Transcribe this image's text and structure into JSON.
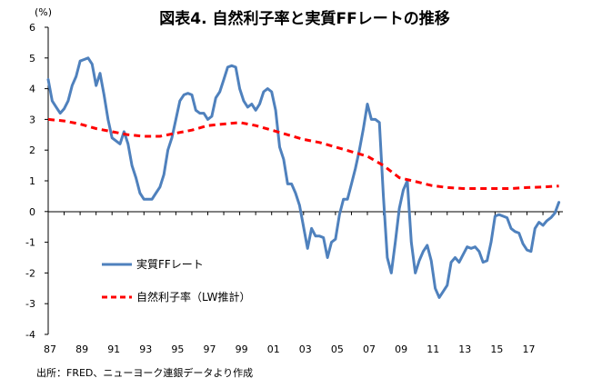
{
  "chart_data": {
    "type": "line",
    "title": "図表4. 自然利子率と実質FFレートの推移",
    "unit_label": "(%)",
    "ylim": [
      -4,
      6
    ],
    "yticks": [
      -4,
      -3,
      -2,
      -1,
      0,
      1,
      2,
      3,
      4,
      5,
      6
    ],
    "xlim": [
      1987,
      2019.25
    ],
    "x_tick_labels": [
      "87",
      "89",
      "91",
      "93",
      "95",
      "97",
      "99",
      "01",
      "03",
      "05",
      "07",
      "09",
      "11",
      "13",
      "15",
      "17"
    ],
    "x_tick_years": [
      1987,
      1989,
      1991,
      1993,
      1995,
      1997,
      1999,
      2001,
      2003,
      2005,
      2007,
      2009,
      2011,
      2013,
      2015,
      2017
    ],
    "source": "出所：FRED、ニューヨーク連銀データより作成",
    "legend_position": "left",
    "series": [
      {
        "name": "実質FFレート",
        "color": "#4F81BD",
        "style": "solid",
        "points": [
          [
            1987.0,
            4.3
          ],
          [
            1987.25,
            3.6
          ],
          [
            1987.5,
            3.4
          ],
          [
            1987.75,
            3.2
          ],
          [
            1988.0,
            3.35
          ],
          [
            1988.25,
            3.6
          ],
          [
            1988.5,
            4.1
          ],
          [
            1988.75,
            4.4
          ],
          [
            1989.0,
            4.9
          ],
          [
            1989.25,
            4.95
          ],
          [
            1989.5,
            5.0
          ],
          [
            1989.75,
            4.8
          ],
          [
            1990.0,
            4.1
          ],
          [
            1990.25,
            4.5
          ],
          [
            1990.5,
            3.8
          ],
          [
            1990.75,
            3.0
          ],
          [
            1991.0,
            2.4
          ],
          [
            1991.25,
            2.3
          ],
          [
            1991.5,
            2.2
          ],
          [
            1991.75,
            2.6
          ],
          [
            1992.0,
            2.2
          ],
          [
            1992.25,
            1.5
          ],
          [
            1992.5,
            1.1
          ],
          [
            1992.75,
            0.6
          ],
          [
            1993.0,
            0.4
          ],
          [
            1993.25,
            0.4
          ],
          [
            1993.5,
            0.4
          ],
          [
            1993.75,
            0.6
          ],
          [
            1994.0,
            0.8
          ],
          [
            1994.25,
            1.2
          ],
          [
            1994.5,
            2.0
          ],
          [
            1994.75,
            2.4
          ],
          [
            1995.0,
            3.0
          ],
          [
            1995.25,
            3.6
          ],
          [
            1995.5,
            3.8
          ],
          [
            1995.75,
            3.85
          ],
          [
            1996.0,
            3.8
          ],
          [
            1996.25,
            3.3
          ],
          [
            1996.5,
            3.2
          ],
          [
            1996.75,
            3.2
          ],
          [
            1997.0,
            3.0
          ],
          [
            1997.25,
            3.1
          ],
          [
            1997.5,
            3.7
          ],
          [
            1997.75,
            3.9
          ],
          [
            1998.0,
            4.3
          ],
          [
            1998.25,
            4.7
          ],
          [
            1998.5,
            4.75
          ],
          [
            1998.75,
            4.7
          ],
          [
            1999.0,
            4.0
          ],
          [
            1999.25,
            3.6
          ],
          [
            1999.5,
            3.4
          ],
          [
            1999.75,
            3.5
          ],
          [
            2000.0,
            3.3
          ],
          [
            2000.25,
            3.5
          ],
          [
            2000.5,
            3.9
          ],
          [
            2000.75,
            4.0
          ],
          [
            2001.0,
            3.9
          ],
          [
            2001.25,
            3.3
          ],
          [
            2001.5,
            2.1
          ],
          [
            2001.75,
            1.7
          ],
          [
            2002.0,
            0.9
          ],
          [
            2002.25,
            0.9
          ],
          [
            2002.5,
            0.6
          ],
          [
            2002.75,
            0.2
          ],
          [
            2003.0,
            -0.5
          ],
          [
            2003.25,
            -1.2
          ],
          [
            2003.5,
            -0.55
          ],
          [
            2003.75,
            -0.8
          ],
          [
            2004.0,
            -0.8
          ],
          [
            2004.25,
            -0.85
          ],
          [
            2004.5,
            -1.5
          ],
          [
            2004.75,
            -1.0
          ],
          [
            2005.0,
            -0.9
          ],
          [
            2005.25,
            -0.1
          ],
          [
            2005.5,
            0.4
          ],
          [
            2005.75,
            0.4
          ],
          [
            2006.0,
            0.9
          ],
          [
            2006.25,
            1.4
          ],
          [
            2006.5,
            2.0
          ],
          [
            2006.75,
            2.7
          ],
          [
            2007.0,
            3.5
          ],
          [
            2007.25,
            3.0
          ],
          [
            2007.5,
            3.0
          ],
          [
            2007.75,
            2.9
          ],
          [
            2008.0,
            0.5
          ],
          [
            2008.25,
            -1.5
          ],
          [
            2008.5,
            -2.0
          ],
          [
            2008.75,
            -1.0
          ],
          [
            2009.0,
            0.1
          ],
          [
            2009.25,
            0.7
          ],
          [
            2009.5,
            1.0
          ],
          [
            2009.75,
            -1.0
          ],
          [
            2010.0,
            -2.0
          ],
          [
            2010.25,
            -1.6
          ],
          [
            2010.5,
            -1.3
          ],
          [
            2010.75,
            -1.1
          ],
          [
            2011.0,
            -1.6
          ],
          [
            2011.25,
            -2.5
          ],
          [
            2011.5,
            -2.8
          ],
          [
            2011.75,
            -2.6
          ],
          [
            2012.0,
            -2.4
          ],
          [
            2012.25,
            -1.65
          ],
          [
            2012.5,
            -1.5
          ],
          [
            2012.75,
            -1.65
          ],
          [
            2013.0,
            -1.4
          ],
          [
            2013.25,
            -1.15
          ],
          [
            2013.5,
            -1.2
          ],
          [
            2013.75,
            -1.15
          ],
          [
            2014.0,
            -1.3
          ],
          [
            2014.25,
            -1.65
          ],
          [
            2014.5,
            -1.6
          ],
          [
            2014.75,
            -1.0
          ],
          [
            2015.0,
            -0.15
          ],
          [
            2015.25,
            -0.1
          ],
          [
            2015.5,
            -0.15
          ],
          [
            2015.75,
            -0.2
          ],
          [
            2016.0,
            -0.55
          ],
          [
            2016.25,
            -0.65
          ],
          [
            2016.5,
            -0.7
          ],
          [
            2016.75,
            -1.05
          ],
          [
            2017.0,
            -1.25
          ],
          [
            2017.25,
            -1.3
          ],
          [
            2017.5,
            -0.55
          ],
          [
            2017.75,
            -0.35
          ],
          [
            2018.0,
            -0.45
          ],
          [
            2018.25,
            -0.3
          ],
          [
            2018.5,
            -0.2
          ],
          [
            2018.75,
            -0.05
          ],
          [
            2019.0,
            0.3
          ]
        ]
      },
      {
        "name": "自然利子率（LW推計）",
        "color": "#FF0000",
        "style": "dashed",
        "points": [
          [
            1987.0,
            3.0
          ],
          [
            1988.0,
            2.95
          ],
          [
            1989.0,
            2.85
          ],
          [
            1990.0,
            2.7
          ],
          [
            1991.0,
            2.6
          ],
          [
            1992.0,
            2.5
          ],
          [
            1993.0,
            2.45
          ],
          [
            1994.0,
            2.45
          ],
          [
            1995.0,
            2.55
          ],
          [
            1996.0,
            2.65
          ],
          [
            1997.0,
            2.8
          ],
          [
            1998.0,
            2.85
          ],
          [
            1999.0,
            2.9
          ],
          [
            2000.0,
            2.8
          ],
          [
            2001.0,
            2.65
          ],
          [
            2002.0,
            2.5
          ],
          [
            2003.0,
            2.35
          ],
          [
            2004.0,
            2.25
          ],
          [
            2005.0,
            2.1
          ],
          [
            2006.0,
            1.95
          ],
          [
            2007.0,
            1.8
          ],
          [
            2008.0,
            1.5
          ],
          [
            2009.0,
            1.1
          ],
          [
            2010.0,
            0.98
          ],
          [
            2011.0,
            0.85
          ],
          [
            2012.0,
            0.78
          ],
          [
            2013.0,
            0.75
          ],
          [
            2014.0,
            0.75
          ],
          [
            2015.0,
            0.75
          ],
          [
            2016.0,
            0.75
          ],
          [
            2017.0,
            0.78
          ],
          [
            2018.0,
            0.8
          ],
          [
            2019.0,
            0.83
          ]
        ]
      }
    ]
  }
}
